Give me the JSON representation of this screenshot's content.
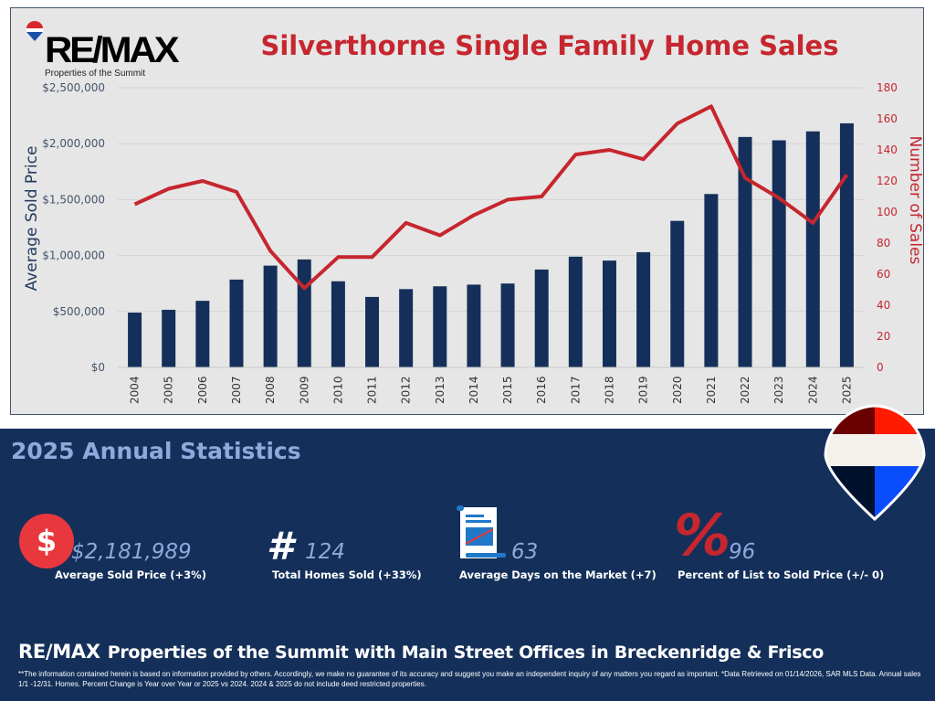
{
  "header": {
    "logo_text": "RE/MAX",
    "logo_subtitle": "Properties of the Summit"
  },
  "chart_data": {
    "type": "bar+line",
    "title": "Silverthorne Single Family Home Sales",
    "categories": [
      "2004",
      "2005",
      "2006",
      "2007",
      "2008",
      "2009",
      "2010",
      "2011",
      "2012",
      "2013",
      "2014",
      "2015",
      "2016",
      "2017",
      "2018",
      "2019",
      "2020",
      "2021",
      "2022",
      "2023",
      "2024",
      "2025"
    ],
    "series": [
      {
        "type": "bar",
        "axis": "left",
        "color": "#14305a",
        "values": [
          490000,
          515000,
          595000,
          785000,
          910000,
          965000,
          770000,
          630000,
          700000,
          725000,
          740000,
          750000,
          875000,
          990000,
          955000,
          1030000,
          1310000,
          1550000,
          2060000,
          2030000,
          2110000,
          2181989
        ]
      },
      {
        "type": "line",
        "axis": "right",
        "color": "#c6262e",
        "values": [
          105,
          115,
          120,
          113,
          75,
          51,
          71,
          71,
          93,
          85,
          98,
          108,
          110,
          137,
          140,
          134,
          157,
          168,
          122,
          109,
          93,
          124
        ]
      }
    ],
    "ylabel": "Average Sold Price",
    "y2label": "Number of Sales",
    "ylim": [
      0,
      2500000
    ],
    "y2lim": [
      0,
      180
    ],
    "yticks": [
      "$0",
      "$500,000",
      "$1,000,000",
      "$1,500,000",
      "$2,000,000",
      "$2,500,000"
    ],
    "y2ticks": [
      "0",
      "20",
      "40",
      "60",
      "80",
      "100",
      "120",
      "140",
      "160",
      "180"
    ],
    "grid": true
  },
  "stats": {
    "title": "2025 Annual Statistics",
    "items": [
      {
        "icon": "dollar-icon",
        "value": "$2,181,989",
        "label": "Average Sold Price (+3%)"
      },
      {
        "icon": "hash-icon",
        "value": "124",
        "label": "Total Homes Sold (+33%)"
      },
      {
        "icon": "calendar-scroll-icon",
        "value": "63",
        "label": "Average Days on the Market (+7)"
      },
      {
        "icon": "percent-icon",
        "value": "96",
        "label": "Percent of List to Sold Price (+/- 0)"
      }
    ]
  },
  "footer": {
    "brand": "RE/MAX",
    "tagline": "Properties of the Summit with Main Street Offices in Breckenridge & Frisco",
    "disclaimer": "**The information contained herein is based on information provided by others. Accordingly, we make no guarantee of its accuracy and suggest you make an independent inquiry of any matters you regard as important. *Data Retrieved on 01/14/2026, SAR MLS Data. Annual sales 1/1 -12/31. Homes. Percent Change is Year over Year or 2025 vs 2024. 2024 & 2025 do not include deed restricted properties."
  },
  "colors": {
    "navy": "#14305a",
    "red": "#c6262e",
    "light_blue": "#8ea9db"
  }
}
